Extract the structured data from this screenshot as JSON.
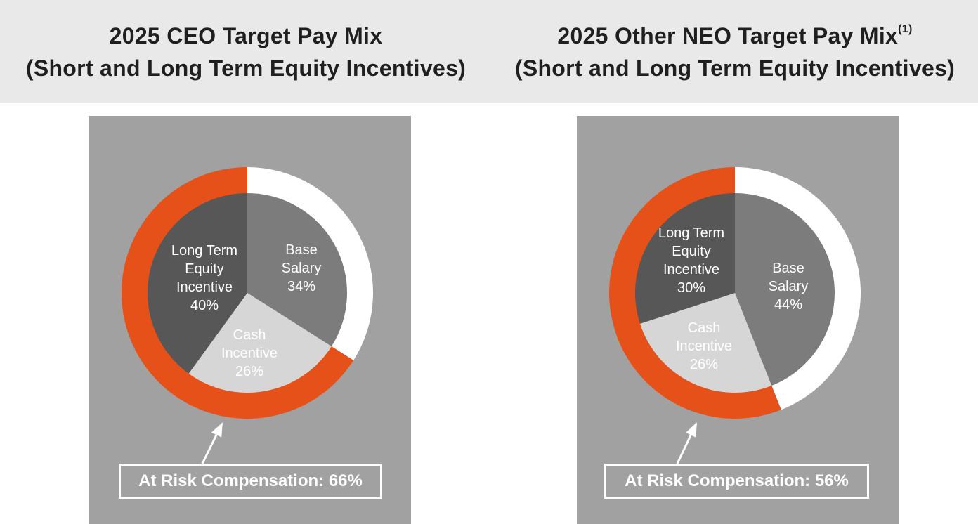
{
  "colors": {
    "header_bg": "#e8e9e8",
    "panel_bg": "#a0a1a0",
    "base_salary": "#7c7c7c",
    "cash_incentive": "#d6d6d6",
    "long_term_equity": "#575757",
    "at_risk_ring": "#e65119",
    "not_at_risk_ring": "#ffffff"
  },
  "chart_data": [
    {
      "type": "pie",
      "title_line1": "2025 CEO Target Pay Mix",
      "title_line2": "(Short and Long Term Equity Incentives)",
      "title_footnote": "",
      "slices": [
        {
          "key": "base_salary",
          "label_lines": [
            "Base",
            "Salary",
            "34%"
          ],
          "value": 34
        },
        {
          "key": "cash_incentive",
          "label_lines": [
            "Cash",
            "Incentive",
            "26%"
          ],
          "value": 26
        },
        {
          "key": "long_term_equity",
          "label_lines": [
            "Long Term",
            "Equity",
            "Incentive",
            "40%"
          ],
          "value": 40
        }
      ],
      "ring": {
        "at_risk_value": 66
      },
      "callout": "At Risk Compensation: 66%"
    },
    {
      "type": "pie",
      "title_line1": "2025 Other NEO Target Pay Mix",
      "title_line2": "(Short and Long Term Equity Incentives)",
      "title_footnote": "(1)",
      "slices": [
        {
          "key": "base_salary",
          "label_lines": [
            "Base",
            "Salary",
            "44%"
          ],
          "value": 44
        },
        {
          "key": "cash_incentive",
          "label_lines": [
            "Cash",
            "Incentive",
            "26%"
          ],
          "value": 26
        },
        {
          "key": "long_term_equity",
          "label_lines": [
            "Long Term",
            "Equity",
            "Incentive",
            "30%"
          ],
          "value": 30
        }
      ],
      "ring": {
        "at_risk_value": 56
      },
      "callout": "At Risk Compensation: 56%"
    }
  ]
}
